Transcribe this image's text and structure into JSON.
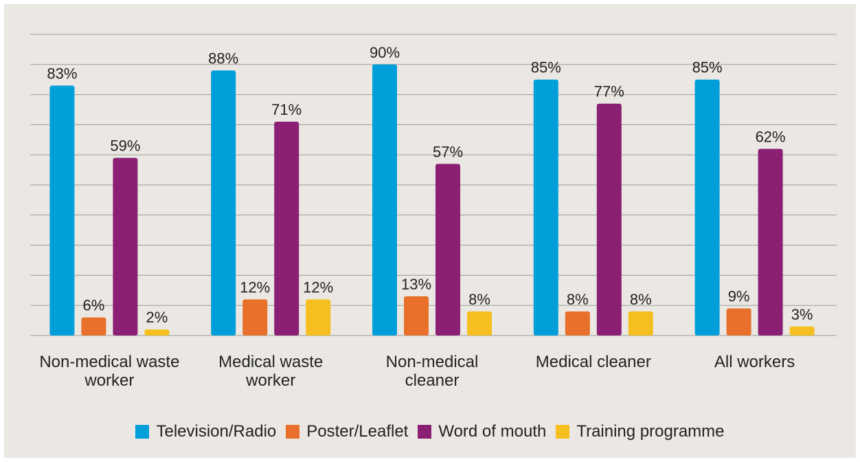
{
  "chart_data": {
    "type": "bar",
    "categories": [
      "Non-medical waste worker",
      "Medical waste worker",
      "Non-medical cleaner",
      "Medical cleaner",
      "All workers"
    ],
    "series": [
      {
        "name": "Television/Radio",
        "color": "#009fda",
        "values": [
          83,
          88,
          90,
          85,
          85
        ],
        "value_labels": [
          "83%",
          "88%",
          "90%",
          "85%",
          "85%"
        ]
      },
      {
        "name": "Poster/Leaflet",
        "color": "#e8702a",
        "values": [
          6,
          12,
          13,
          8,
          9
        ],
        "value_labels": [
          "6%",
          "12%",
          "13%",
          "8%",
          "9%"
        ]
      },
      {
        "name": "Word of mouth",
        "color": "#8b1f73",
        "values": [
          59,
          71,
          57,
          77,
          62
        ],
        "value_labels": [
          "59%",
          "71%",
          "57%",
          "77%",
          "62%"
        ]
      },
      {
        "name": "Training programme",
        "color": "#f5bf1f",
        "values": [
          2,
          12,
          8,
          8,
          3
        ],
        "value_labels": [
          "2%",
          "12%",
          "8%",
          "8%",
          "3%"
        ]
      }
    ],
    "ylim": [
      0,
      100
    ],
    "yticks": [
      0,
      10,
      20,
      30,
      40,
      50,
      60,
      70,
      80,
      90,
      100
    ],
    "grid": true,
    "legend": "bottom"
  }
}
